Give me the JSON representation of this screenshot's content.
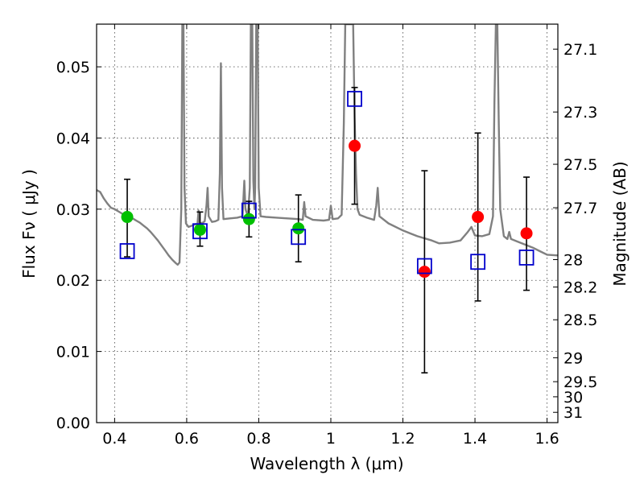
{
  "chart_data": {
    "type": "scatter",
    "title": "",
    "xlabel": "Wavelength  λ (μm)",
    "ylabel": "Flux  Fν  ( μJy )",
    "ylabel_right": "Magnitude (AB)",
    "xlim": [
      0.35,
      1.63
    ],
    "ylim": [
      0.0,
      0.056
    ],
    "grid": true,
    "x_ticks": [
      {
        "value": 0.4,
        "label": "0.4"
      },
      {
        "value": 0.6,
        "label": "0.6"
      },
      {
        "value": 0.8,
        "label": "0.8"
      },
      {
        "value": 1.0,
        "label": "1"
      },
      {
        "value": 1.2,
        "label": "1.2"
      },
      {
        "value": 1.4,
        "label": "1.4"
      },
      {
        "value": 1.6,
        "label": "1.6"
      }
    ],
    "y_ticks": [
      {
        "value": 0.0,
        "label": "0.00"
      },
      {
        "value": 0.01,
        "label": "0.01"
      },
      {
        "value": 0.02,
        "label": "0.02"
      },
      {
        "value": 0.03,
        "label": "0.03"
      },
      {
        "value": 0.04,
        "label": "0.04"
      },
      {
        "value": 0.05,
        "label": "0.05"
      }
    ],
    "right_ticks": [
      {
        "value": 27.1,
        "label": "27.1"
      },
      {
        "value": 27.3,
        "label": "27.3"
      },
      {
        "value": 27.5,
        "label": "27.5"
      },
      {
        "value": 27.7,
        "label": "27.7"
      },
      {
        "value": 28.0,
        "label": "28"
      },
      {
        "value": 28.2,
        "label": "28.2"
      },
      {
        "value": 28.5,
        "label": "28.5"
      },
      {
        "value": 29.0,
        "label": "29"
      },
      {
        "value": 29.5,
        "label": "29.5"
      },
      {
        "value": 30.0,
        "label": "30"
      },
      {
        "value": 31.0,
        "label": "31"
      }
    ],
    "series": [
      {
        "kind": "line",
        "color": "#808080",
        "points": [
          [
            0.35,
            0.0327
          ],
          [
            0.36,
            0.0324
          ],
          [
            0.37,
            0.0315
          ],
          [
            0.38,
            0.0308
          ],
          [
            0.39,
            0.0302
          ],
          [
            0.4,
            0.03
          ],
          [
            0.41,
            0.0297
          ],
          [
            0.42,
            0.0294
          ],
          [
            0.43,
            0.0291
          ],
          [
            0.44,
            0.0289
          ],
          [
            0.45,
            0.0287
          ],
          [
            0.46,
            0.0284
          ],
          [
            0.47,
            0.0281
          ],
          [
            0.48,
            0.0277
          ],
          [
            0.49,
            0.0273
          ],
          [
            0.5,
            0.0268
          ],
          [
            0.51,
            0.0262
          ],
          [
            0.52,
            0.0256
          ],
          [
            0.53,
            0.0249
          ],
          [
            0.54,
            0.0242
          ],
          [
            0.55,
            0.0235
          ],
          [
            0.56,
            0.0229
          ],
          [
            0.57,
            0.0224
          ],
          [
            0.575,
            0.0222
          ],
          [
            0.58,
            0.0225
          ],
          [
            0.585,
            0.03
          ],
          [
            0.588,
            0.056
          ],
          [
            0.591,
            0.056
          ],
          [
            0.594,
            0.033
          ],
          [
            0.598,
            0.028
          ],
          [
            0.605,
            0.0275
          ],
          [
            0.615,
            0.0277
          ],
          [
            0.625,
            0.0279
          ],
          [
            0.63,
            0.0279
          ],
          [
            0.633,
            0.0298
          ],
          [
            0.636,
            0.028
          ],
          [
            0.645,
            0.0281
          ],
          [
            0.65,
            0.0283
          ],
          [
            0.655,
            0.0305
          ],
          [
            0.658,
            0.033
          ],
          [
            0.661,
            0.029
          ],
          [
            0.67,
            0.0282
          ],
          [
            0.68,
            0.0283
          ],
          [
            0.688,
            0.0285
          ],
          [
            0.692,
            0.035
          ],
          [
            0.695,
            0.0505
          ],
          [
            0.698,
            0.033
          ],
          [
            0.702,
            0.0286
          ],
          [
            0.72,
            0.0287
          ],
          [
            0.74,
            0.0288
          ],
          [
            0.755,
            0.029
          ],
          [
            0.76,
            0.034
          ],
          [
            0.763,
            0.03
          ],
          [
            0.77,
            0.029
          ],
          [
            0.775,
            0.033
          ],
          [
            0.778,
            0.056
          ],
          [
            0.782,
            0.056
          ],
          [
            0.785,
            0.034
          ],
          [
            0.788,
            0.03
          ],
          [
            0.79,
            0.033
          ],
          [
            0.793,
            0.056
          ],
          [
            0.797,
            0.056
          ],
          [
            0.8,
            0.033
          ],
          [
            0.805,
            0.029
          ],
          [
            0.82,
            0.0289
          ],
          [
            0.85,
            0.0288
          ],
          [
            0.88,
            0.0287
          ],
          [
            0.91,
            0.0286
          ],
          [
            0.922,
            0.0285
          ],
          [
            0.926,
            0.031
          ],
          [
            0.93,
            0.029
          ],
          [
            0.95,
            0.0285
          ],
          [
            0.98,
            0.0284
          ],
          [
            0.995,
            0.0285
          ],
          [
            1.0,
            0.0305
          ],
          [
            1.005,
            0.0286
          ],
          [
            1.02,
            0.0287
          ],
          [
            1.03,
            0.0292
          ],
          [
            1.036,
            0.042
          ],
          [
            1.04,
            0.056
          ],
          [
            1.062,
            0.056
          ],
          [
            1.066,
            0.043
          ],
          [
            1.07,
            0.035
          ],
          [
            1.074,
            0.03
          ],
          [
            1.08,
            0.0292
          ],
          [
            1.1,
            0.0288
          ],
          [
            1.12,
            0.0285
          ],
          [
            1.126,
            0.0305
          ],
          [
            1.13,
            0.033
          ],
          [
            1.135,
            0.029
          ],
          [
            1.16,
            0.028
          ],
          [
            1.2,
            0.027
          ],
          [
            1.24,
            0.0262
          ],
          [
            1.28,
            0.0256
          ],
          [
            1.3,
            0.0252
          ],
          [
            1.33,
            0.0253
          ],
          [
            1.36,
            0.0256
          ],
          [
            1.38,
            0.0268
          ],
          [
            1.39,
            0.0275
          ],
          [
            1.4,
            0.0263
          ],
          [
            1.42,
            0.0262
          ],
          [
            1.44,
            0.0265
          ],
          [
            1.45,
            0.029
          ],
          [
            1.454,
            0.045
          ],
          [
            1.458,
            0.056
          ],
          [
            1.462,
            0.056
          ],
          [
            1.466,
            0.042
          ],
          [
            1.47,
            0.03
          ],
          [
            1.48,
            0.0262
          ],
          [
            1.49,
            0.0258
          ],
          [
            1.495,
            0.0268
          ],
          [
            1.5,
            0.0258
          ],
          [
            1.52,
            0.0254
          ],
          [
            1.54,
            0.025
          ],
          [
            1.56,
            0.0246
          ],
          [
            1.58,
            0.0241
          ],
          [
            1.6,
            0.0236
          ],
          [
            1.63,
            0.0235
          ]
        ]
      },
      {
        "kind": "points",
        "marker": "circle",
        "color": "#00c000",
        "points": [
          {
            "x": 0.435,
            "y": 0.0289,
            "lo": 0.0233,
            "hi": 0.0342
          },
          {
            "x": 0.637,
            "y": 0.0271,
            "lo": 0.0248,
            "hi": 0.0296
          },
          {
            "x": 0.773,
            "y": 0.0286,
            "lo": 0.0261,
            "hi": 0.0311
          },
          {
            "x": 0.91,
            "y": 0.0273,
            "lo": 0.0226,
            "hi": 0.032
          }
        ]
      },
      {
        "kind": "points",
        "marker": "circle",
        "color": "#ff0000",
        "points": [
          {
            "x": 1.066,
            "y": 0.0389,
            "lo": 0.0307,
            "hi": 0.0471
          },
          {
            "x": 1.26,
            "y": 0.0212,
            "lo": 0.007,
            "hi": 0.0354
          },
          {
            "x": 1.408,
            "y": 0.0289,
            "lo": 0.0171,
            "hi": 0.0407
          },
          {
            "x": 1.543,
            "y": 0.0266,
            "lo": 0.0186,
            "hi": 0.0345
          }
        ]
      },
      {
        "kind": "points",
        "marker": "open-square",
        "color": "#0000cc",
        "points": [
          {
            "x": 0.435,
            "y": 0.0241
          },
          {
            "x": 0.637,
            "y": 0.0269
          },
          {
            "x": 0.773,
            "y": 0.0298
          },
          {
            "x": 0.91,
            "y": 0.0261
          },
          {
            "x": 1.066,
            "y": 0.0455
          },
          {
            "x": 1.26,
            "y": 0.022
          },
          {
            "x": 1.408,
            "y": 0.0226
          },
          {
            "x": 1.543,
            "y": 0.0232
          }
        ]
      }
    ]
  }
}
